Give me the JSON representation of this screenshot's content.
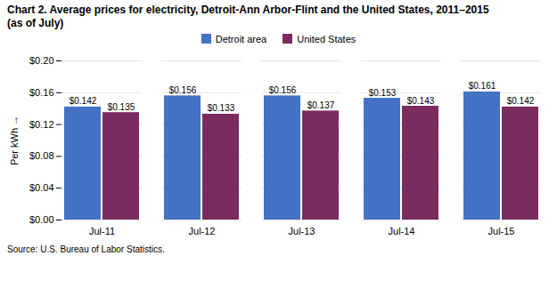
{
  "chart_data": {
    "type": "bar",
    "title": "Chart 2. Average prices for electricity, Detroit-Ann Arbor-Flint and the United States, 2011–2015",
    "subtitle": "(as of July)",
    "ylabel": "Per kWh",
    "source": "Source: U.S. Bureau of Labor Statistics.",
    "categories": [
      "Jul-11",
      "Jul-12",
      "Jul-13",
      "Jul-14",
      "Jul-15"
    ],
    "series": [
      {
        "name": "Detroit area",
        "color": "#4472C4",
        "values": [
          0.142,
          0.156,
          0.156,
          0.153,
          0.161
        ],
        "value_labels": [
          "$0.142",
          "$0.156",
          "$0.156",
          "$0.153",
          "$0.161"
        ]
      },
      {
        "name": "United States",
        "color": "#7B2C5E",
        "values": [
          0.135,
          0.133,
          0.137,
          0.143,
          0.142
        ],
        "value_labels": [
          "$0.135",
          "$0.133",
          "$0.137",
          "$0.143",
          "$0.142"
        ]
      }
    ],
    "ylim": [
      0,
      0.2
    ],
    "yticks": [
      {
        "value": 0.0,
        "label": "$0.00"
      },
      {
        "value": 0.04,
        "label": "$0.04"
      },
      {
        "value": 0.08,
        "label": "$0.08"
      },
      {
        "value": 0.12,
        "label": "$0.12"
      },
      {
        "value": 0.16,
        "label": "$0.16"
      },
      {
        "value": 0.2,
        "label": "$0.20"
      }
    ],
    "grid": true,
    "legend": "top",
    "data_labels": true
  }
}
